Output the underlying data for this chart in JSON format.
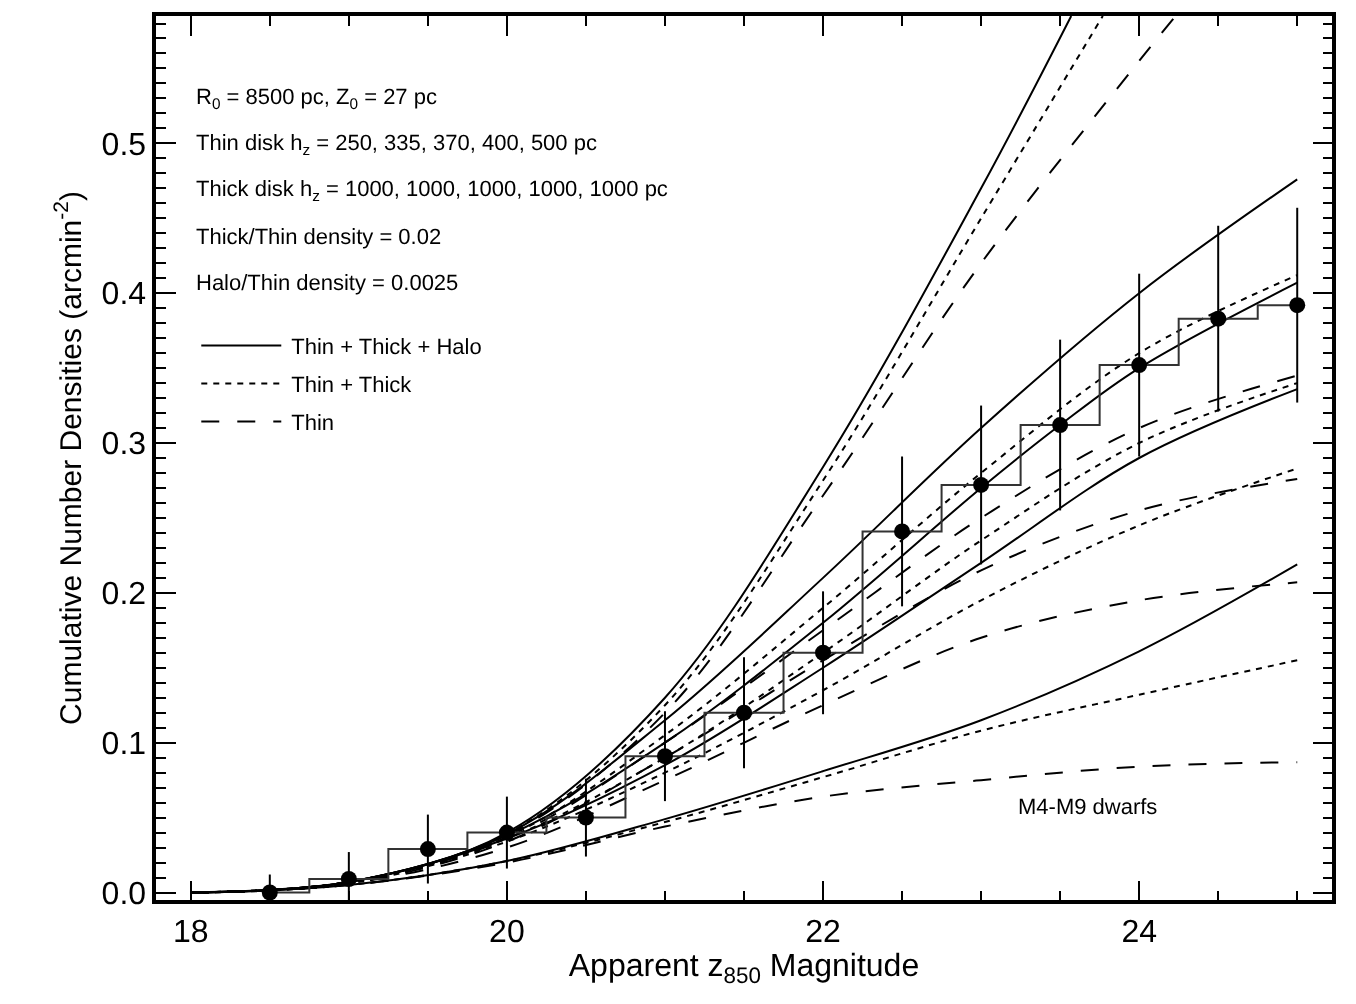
{
  "chart_data": {
    "type": "line",
    "xlabel": "Apparent z$_{850}$ Magnitude",
    "ylabel": "Cumulative Number Densities (arcmin$^{-2}$)",
    "annotations": [
      "R$_{0}$ = 8500 pc, Z$_{0}$ = 27 pc",
      "Thin disk h$_{z}$ = 250, 335, 370, 400, 500 pc",
      "Thick disk h$_{z}$ = 1000, 1000, 1000, 1000, 1000 pc",
      "Thick/Thin density = 0.02",
      "Halo/Thin density = 0.0025",
      "M4-M9 dwarfs"
    ],
    "xlim": [
      17.78,
      25.22
    ],
    "xticks": [
      18,
      20,
      22,
      24
    ],
    "ylim": [
      -0.005,
      0.585
    ],
    "yticks": [
      {
        "value": 0,
        "label": "0.0"
      },
      {
        "value": 0.1,
        "label": "0.1"
      },
      {
        "value": 0.2,
        "label": "0.2"
      },
      {
        "value": 0.3,
        "label": "0.3"
      },
      {
        "value": 0.4,
        "label": "0.4"
      },
      {
        "value": 0.5,
        "label": "0.5"
      }
    ],
    "grid": false,
    "legend": "top left",
    "series": [
      {
        "name": "Thin + Thick + Halo",
        "color": "#000000",
        "line_style": "solid",
        "x": [
          18,
          19,
          20,
          21,
          22,
          23,
          23.57
        ],
        "values": [
          0,
          0.007,
          0.04,
          0.13,
          0.284,
          0.47,
          0.585
        ]
      },
      {
        "name": "Thin + Thick",
        "color": "#000000",
        "line_style": "dotted",
        "x": [
          18,
          19,
          20,
          21,
          22,
          23,
          23.77
        ],
        "values": [
          0,
          0.007,
          0.039,
          0.125,
          0.275,
          0.45,
          0.585
        ]
      },
      {
        "name": "Thin",
        "color": "#000000",
        "line_style": "dashed",
        "x": [
          18,
          19,
          20,
          21,
          22,
          23,
          24,
          24.23
        ],
        "values": [
          0,
          0.007,
          0.038,
          0.12,
          0.265,
          0.42,
          0.555,
          0.585
        ]
      },
      {
        "color": "#000000",
        "line_style": "solid",
        "x": [
          18,
          19,
          20,
          21,
          22,
          23,
          24,
          25
        ],
        "values": [
          0,
          0.007,
          0.039,
          0.115,
          0.21,
          0.31,
          0.4,
          0.476
        ]
      },
      {
        "color": "#000000",
        "line_style": "dotted",
        "x": [
          18,
          19,
          20,
          21,
          22,
          23,
          24,
          25
        ],
        "values": [
          0,
          0.007,
          0.037,
          0.105,
          0.19,
          0.28,
          0.36,
          0.412
        ]
      },
      {
        "color": "#000000",
        "line_style": "dashed",
        "x": [
          18,
          19,
          20,
          21,
          22,
          23,
          24,
          25
        ],
        "values": [
          0,
          0.007,
          0.036,
          0.1,
          0.175,
          0.25,
          0.31,
          0.345
        ]
      },
      {
        "color": "#000000",
        "line_style": "solid",
        "x": [
          18,
          19,
          20,
          21,
          22,
          23,
          23.5,
          24,
          25
        ],
        "values": [
          0,
          0.007,
          0.038,
          0.1,
          0.18,
          0.27,
          0.312,
          0.35,
          0.407
        ]
      },
      {
        "color": "#000000",
        "line_style": "dotted",
        "x": [
          18,
          19,
          20,
          21,
          22,
          23,
          24,
          25
        ],
        "values": [
          0,
          0.007,
          0.036,
          0.09,
          0.16,
          0.235,
          0.3,
          0.34
        ]
      },
      {
        "color": "#000000",
        "line_style": "dashed",
        "x": [
          18,
          19,
          20,
          21,
          22,
          23,
          24,
          25
        ],
        "values": [
          0,
          0.006,
          0.034,
          0.09,
          0.155,
          0.215,
          0.255,
          0.276
        ]
      },
      {
        "color": "#000000",
        "line_style": "solid",
        "x": [
          18,
          19,
          20,
          21,
          22,
          23,
          24,
          25
        ],
        "values": [
          0,
          0.007,
          0.036,
          0.085,
          0.15,
          0.22,
          0.29,
          0.336
        ]
      },
      {
        "color": "#000000",
        "line_style": "dotted",
        "x": [
          18,
          19,
          20,
          21,
          22,
          23,
          24,
          25
        ],
        "values": [
          0,
          0.006,
          0.034,
          0.08,
          0.135,
          0.195,
          0.245,
          0.283
        ]
      },
      {
        "color": "#000000",
        "line_style": "dashed",
        "x": [
          18,
          19,
          20,
          21,
          22,
          23,
          24,
          25
        ],
        "values": [
          0,
          0.006,
          0.03,
          0.075,
          0.125,
          0.17,
          0.195,
          0.207
        ]
      },
      {
        "color": "#000000",
        "line_style": "solid",
        "x": [
          18,
          19,
          20,
          21,
          22,
          23,
          24,
          25
        ],
        "values": [
          0,
          0.005,
          0.021,
          0.049,
          0.081,
          0.115,
          0.161,
          0.219
        ]
      },
      {
        "color": "#000000",
        "line_style": "dotted",
        "x": [
          18,
          19,
          20,
          21,
          22,
          23,
          24,
          25
        ],
        "values": [
          0,
          0.005,
          0.021,
          0.047,
          0.077,
          0.108,
          0.132,
          0.155
        ]
      },
      {
        "color": "#000000",
        "line_style": "dashed",
        "x": [
          18,
          19,
          20,
          21,
          22,
          23,
          24,
          25
        ],
        "values": [
          0,
          0.005,
          0.02,
          0.044,
          0.064,
          0.075,
          0.084,
          0.087
        ]
      },
      {
        "type": "step",
        "color": "#333333",
        "line_style": "solid",
        "x": [
          18.5,
          19,
          19.5,
          20,
          20.5,
          21,
          21.5,
          22,
          22.5,
          23,
          23.5,
          24,
          24.5,
          25
        ],
        "values": [
          0,
          0.009,
          0.029,
          0.04,
          0.05,
          0.091,
          0.12,
          0.16,
          0.241,
          0.272,
          0.312,
          0.352,
          0.383,
          0.392
        ]
      },
      {
        "type": "scatter",
        "color": "#000000",
        "marker": "circle",
        "x": [
          18.5,
          19,
          19.5,
          20,
          20.5,
          21,
          21.5,
          22,
          22.5,
          23,
          23.5,
          24,
          24.5,
          25
        ],
        "values": [
          0,
          0.009,
          0.029,
          0.04,
          0.05,
          0.091,
          0.12,
          0.16,
          0.241,
          0.272,
          0.312,
          0.352,
          0.383,
          0.392
        ],
        "errors": [
          0.012,
          0.018,
          0.023,
          0.024,
          0.026,
          0.03,
          0.037,
          0.041,
          0.05,
          0.053,
          0.057,
          0.061,
          0.062,
          0.065
        ]
      }
    ]
  }
}
